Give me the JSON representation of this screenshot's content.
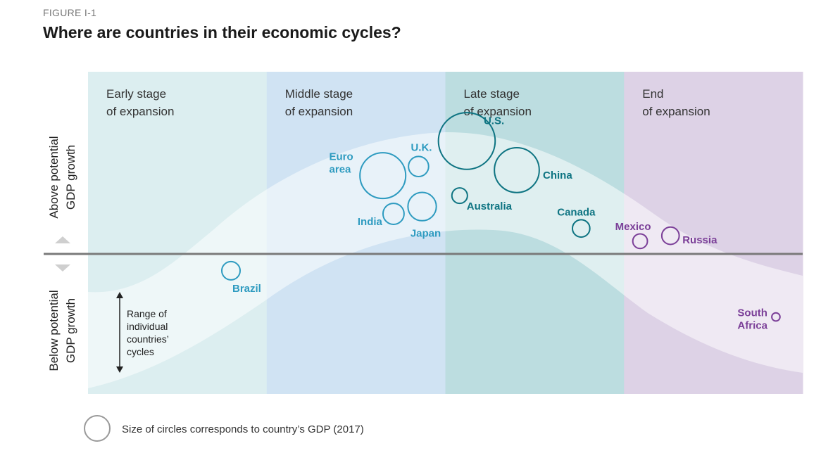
{
  "figure_label": "FIGURE I-1",
  "title": "Where are countries in their economic cycles?",
  "colors": {
    "cyan": "#2E9BC0",
    "teal": "#0E7482",
    "purple": "#7B3F98"
  },
  "chart_data": {
    "type": "scatter",
    "title": "Where are countries in their economic cycles?",
    "stages": [
      {
        "line1": "Early stage",
        "line2": "of expansion",
        "color": "#DCEEF0"
      },
      {
        "line1": "Middle stage",
        "line2": "of expansion",
        "color": "#D0E3F3"
      },
      {
        "line1": "Late stage",
        "line2": "of expansion",
        "color": "#BCDDE0"
      },
      {
        "line1": "End",
        "line2": "of expansion",
        "color": "#DDD2E6"
      }
    ],
    "y_axis": {
      "upper": [
        "Above potential",
        "GDP growth"
      ],
      "lower": [
        "Below potential",
        "GDP growth"
      ]
    },
    "range_label": [
      "Range of",
      "individual",
      "countries’",
      "cycles"
    ],
    "countries": [
      {
        "name": "Brazil",
        "stage": 0,
        "pos": 0.8,
        "above": -0.12,
        "size": 1.0,
        "color": "cyan"
      },
      {
        "name": "Euro area",
        "stage": 1,
        "pos": 0.65,
        "above": 0.43,
        "size": 2.5,
        "color": "cyan"
      },
      {
        "name": "U.K.",
        "stage": 1,
        "pos": 0.85,
        "above": 0.48,
        "size": 1.1,
        "color": "cyan"
      },
      {
        "name": "India",
        "stage": 1,
        "pos": 0.71,
        "above": 0.22,
        "size": 1.15,
        "color": "cyan"
      },
      {
        "name": "Japan",
        "stage": 1,
        "pos": 0.87,
        "above": 0.26,
        "size": 1.55,
        "color": "cyan"
      },
      {
        "name": "U.S.",
        "stage": 2,
        "pos": 0.12,
        "above": 0.62,
        "size": 3.1,
        "color": "teal"
      },
      {
        "name": "China",
        "stage": 2,
        "pos": 0.4,
        "above": 0.46,
        "size": 2.45,
        "color": "teal"
      },
      {
        "name": "Australia",
        "stage": 2,
        "pos": 0.08,
        "above": 0.32,
        "size": 0.85,
        "color": "teal"
      },
      {
        "name": "Canada",
        "stage": 2,
        "pos": 0.76,
        "above": 0.14,
        "size": 0.95,
        "color": "teal"
      },
      {
        "name": "Mexico",
        "stage": 3,
        "pos": 0.09,
        "above": 0.07,
        "size": 0.8,
        "color": "purple"
      },
      {
        "name": "Russia",
        "stage": 3,
        "pos": 0.26,
        "above": 0.1,
        "size": 0.95,
        "color": "purple"
      },
      {
        "name": "South Africa",
        "stage": 3,
        "pos": 0.85,
        "above": -0.45,
        "size": 0.45,
        "color": "purple"
      }
    ]
  },
  "legend_text": "Size of circles corresponds to country’s GDP (2017)"
}
